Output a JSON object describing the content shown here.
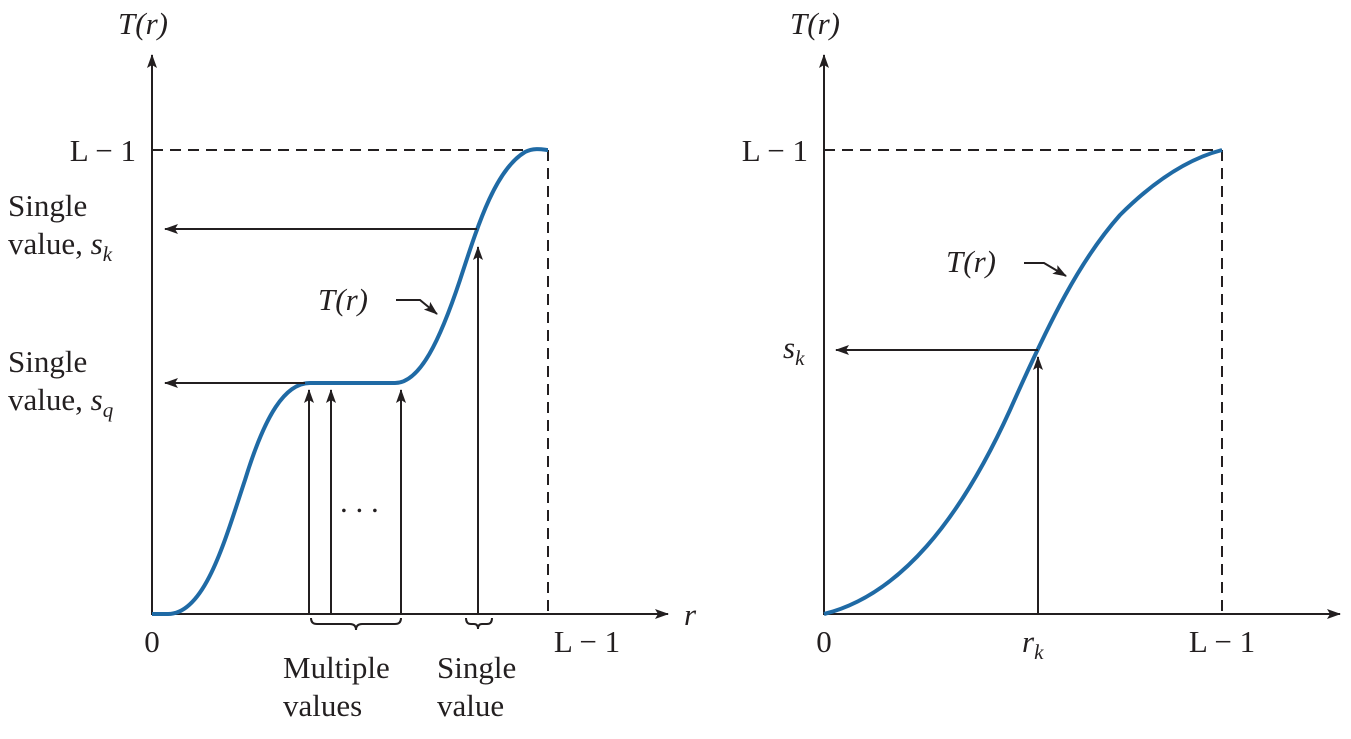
{
  "colors": {
    "curve": "#1f6aa5",
    "ink": "#231f20"
  },
  "left_panel": {
    "y_axis_label": "T(r)",
    "x_axis_label": "r",
    "y_max_label": "L − 1",
    "x_origin_label": "0",
    "x_max_label": "L − 1",
    "sk_label_line1": "Single",
    "sk_label_line2": "value, ",
    "sk_symbol": "s",
    "sk_sub": "k",
    "sq_label_line1": "Single",
    "sq_label_line2": "value, ",
    "sq_symbol": "s",
    "sq_sub": "q",
    "curve_label": "T(r)",
    "ellipsis": ". . .",
    "multiple_values_line1": "Multiple",
    "multiple_values_line2": "values",
    "single_value_line1": "Single",
    "single_value_line2": "value"
  },
  "right_panel": {
    "y_axis_label": "T(r)",
    "y_max_label": "L − 1",
    "sk_symbol": "s",
    "sk_sub": "k",
    "curve_label": "T(r)",
    "x_origin_label": "0",
    "rk_symbol": "r",
    "rk_sub": "k",
    "x_max_label": "L − 1"
  }
}
